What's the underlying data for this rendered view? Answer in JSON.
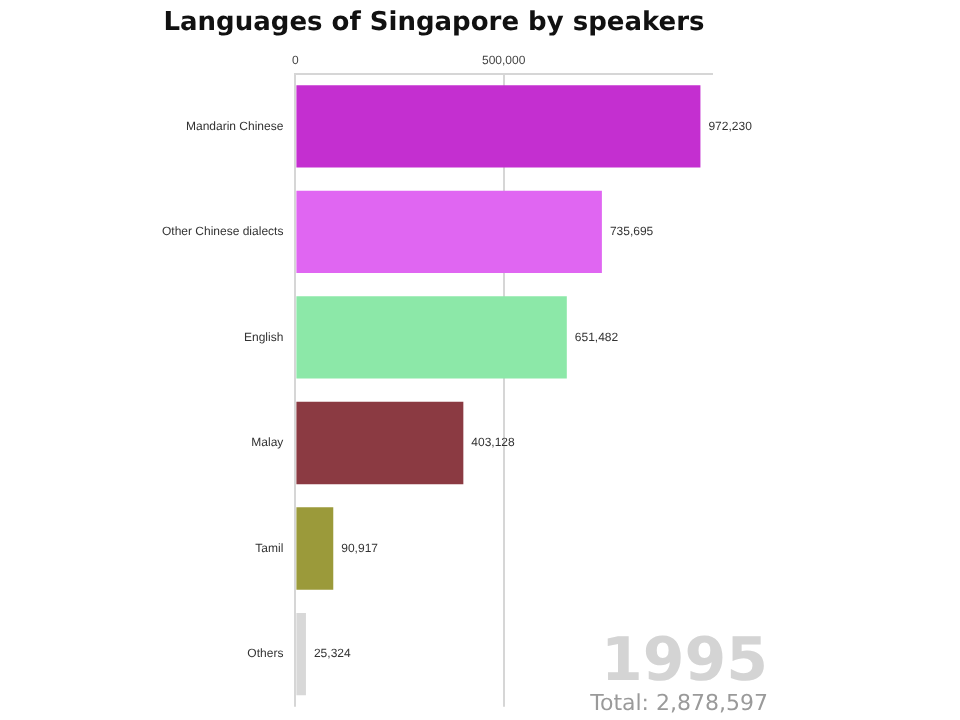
{
  "chart_data": {
    "type": "bar",
    "orientation": "horizontal",
    "title": "Languages of Singapore by speakers",
    "categories": [
      "Mandarin Chinese",
      "Other Chinese dialects",
      "English",
      "Malay",
      "Tamil",
      "Others"
    ],
    "values": [
      972230,
      735695,
      651482,
      403128,
      90917,
      25324
    ],
    "colors": [
      "#c42fd0",
      "#e066f2",
      "#8ce8a8",
      "#8b3a42",
      "#9b9a3a",
      "#d8d8d8"
    ],
    "value_labels": [
      "972,230",
      "735,695",
      "651,482",
      "403,128",
      "90,917",
      "25,324"
    ],
    "xlim": [
      0,
      1000000
    ],
    "xticks": [
      0,
      {
        "value": 500000,
        "label": "500,000"
      }
    ],
    "grid": "x",
    "legend": false,
    "annotations": [
      "1995",
      "Total: 2,878,597"
    ]
  }
}
